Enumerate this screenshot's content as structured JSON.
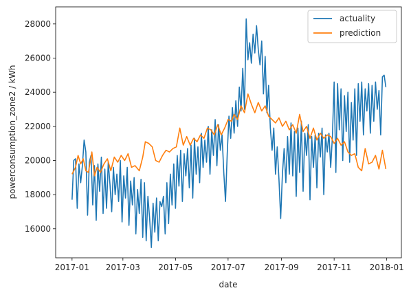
{
  "chart_data": {
    "type": "line",
    "title": "",
    "xlabel": "date",
    "ylabel": "powerconsumption_zone2 / kWh",
    "xlim": [
      "2016-12-13",
      "2018-01-18"
    ],
    "ylim": [
      14300,
      29000
    ],
    "x_ticks": [
      "2017-01",
      "2017-03",
      "2017-05",
      "2017-07",
      "2017-09",
      "2017-11",
      "2018-01"
    ],
    "y_ticks": [
      16000,
      18000,
      20000,
      22000,
      24000,
      26000,
      28000
    ],
    "grid": false,
    "legend_position": "top-right",
    "series": [
      {
        "name": "actuality",
        "color": "#1f77b4",
        "points": [
          [
            "2017-01-01",
            17700
          ],
          [
            "2017-01-03",
            20000
          ],
          [
            "2017-01-05",
            20100
          ],
          [
            "2017-01-07",
            17200
          ],
          [
            "2017-01-09",
            19800
          ],
          [
            "2017-01-11",
            18700
          ],
          [
            "2017-01-13",
            19700
          ],
          [
            "2017-01-15",
            21200
          ],
          [
            "2017-01-17",
            20500
          ],
          [
            "2017-01-19",
            16800
          ],
          [
            "2017-01-21",
            19900
          ],
          [
            "2017-01-23",
            20300
          ],
          [
            "2017-01-25",
            17400
          ],
          [
            "2017-01-27",
            19700
          ],
          [
            "2017-01-29",
            16500
          ],
          [
            "2017-01-31",
            19800
          ],
          [
            "2017-02-02",
            18200
          ],
          [
            "2017-02-04",
            20200
          ],
          [
            "2017-02-06",
            16900
          ],
          [
            "2017-02-08",
            19500
          ],
          [
            "2017-02-10",
            17200
          ],
          [
            "2017-02-12",
            19900
          ],
          [
            "2017-02-14",
            18600
          ],
          [
            "2017-02-16",
            17000
          ],
          [
            "2017-02-18",
            19600
          ],
          [
            "2017-02-20",
            18000
          ],
          [
            "2017-02-22",
            19200
          ],
          [
            "2017-02-24",
            17600
          ],
          [
            "2017-02-26",
            20000
          ],
          [
            "2017-02-28",
            16400
          ],
          [
            "2017-03-02",
            19100
          ],
          [
            "2017-03-04",
            17800
          ],
          [
            "2017-03-06",
            19600
          ],
          [
            "2017-03-08",
            16200
          ],
          [
            "2017-03-10",
            18800
          ],
          [
            "2017-03-12",
            17400
          ],
          [
            "2017-03-14",
            19000
          ],
          [
            "2017-03-16",
            15700
          ],
          [
            "2017-03-18",
            18300
          ],
          [
            "2017-03-20",
            16900
          ],
          [
            "2017-03-22",
            18900
          ],
          [
            "2017-03-24",
            15500
          ],
          [
            "2017-03-26",
            18700
          ],
          [
            "2017-03-28",
            15300
          ],
          [
            "2017-03-30",
            17900
          ],
          [
            "2017-04-01",
            16600
          ],
          [
            "2017-04-03",
            14900
          ],
          [
            "2017-04-05",
            17500
          ],
          [
            "2017-04-07",
            15800
          ],
          [
            "2017-04-09",
            17800
          ],
          [
            "2017-04-11",
            15300
          ],
          [
            "2017-04-13",
            17600
          ],
          [
            "2017-04-15",
            17300
          ],
          [
            "2017-04-17",
            17900
          ],
          [
            "2017-04-19",
            15700
          ],
          [
            "2017-04-21",
            18700
          ],
          [
            "2017-04-23",
            16300
          ],
          [
            "2017-04-25",
            19200
          ],
          [
            "2017-04-27",
            17400
          ],
          [
            "2017-04-29",
            19800
          ],
          [
            "2017-05-01",
            17200
          ],
          [
            "2017-05-03",
            20300
          ],
          [
            "2017-05-05",
            18500
          ],
          [
            "2017-05-07",
            20600
          ],
          [
            "2017-05-09",
            17600
          ],
          [
            "2017-05-11",
            20400
          ],
          [
            "2017-05-13",
            19100
          ],
          [
            "2017-05-15",
            20700
          ],
          [
            "2017-05-17",
            18400
          ],
          [
            "2017-05-19",
            20900
          ],
          [
            "2017-05-21",
            17800
          ],
          [
            "2017-05-23",
            21300
          ],
          [
            "2017-05-25",
            19200
          ],
          [
            "2017-05-27",
            20800
          ],
          [
            "2017-05-29",
            18700
          ],
          [
            "2017-05-31",
            21600
          ],
          [
            "2017-06-02",
            19600
          ],
          [
            "2017-06-04",
            21200
          ],
          [
            "2017-06-06",
            19900
          ],
          [
            "2017-06-08",
            22000
          ],
          [
            "2017-06-10",
            19200
          ],
          [
            "2017-06-12",
            21800
          ],
          [
            "2017-06-14",
            20300
          ],
          [
            "2017-06-16",
            22400
          ],
          [
            "2017-06-18",
            19700
          ],
          [
            "2017-06-20",
            22100
          ],
          [
            "2017-06-22",
            20600
          ],
          [
            "2017-06-24",
            21500
          ],
          [
            "2017-06-26",
            19300
          ],
          [
            "2017-06-28",
            17600
          ],
          [
            "2017-06-30",
            20400
          ],
          [
            "2017-07-02",
            22600
          ],
          [
            "2017-07-04",
            21300
          ],
          [
            "2017-07-06",
            23100
          ],
          [
            "2017-07-08",
            21600
          ],
          [
            "2017-07-10",
            23500
          ],
          [
            "2017-07-12",
            22000
          ],
          [
            "2017-07-14",
            24300
          ],
          [
            "2017-07-16",
            22900
          ],
          [
            "2017-07-18",
            25400
          ],
          [
            "2017-07-20",
            23000
          ],
          [
            "2017-07-22",
            28300
          ],
          [
            "2017-07-24",
            25900
          ],
          [
            "2017-07-26",
            26900
          ],
          [
            "2017-07-28",
            25700
          ],
          [
            "2017-07-30",
            27400
          ],
          [
            "2017-08-01",
            26300
          ],
          [
            "2017-08-03",
            27900
          ],
          [
            "2017-08-05",
            26500
          ],
          [
            "2017-08-07",
            25600
          ],
          [
            "2017-08-09",
            27000
          ],
          [
            "2017-08-11",
            23900
          ],
          [
            "2017-08-13",
            26100
          ],
          [
            "2017-08-15",
            22800
          ],
          [
            "2017-08-17",
            24400
          ],
          [
            "2017-08-19",
            21900
          ],
          [
            "2017-08-21",
            20600
          ],
          [
            "2017-08-23",
            21900
          ],
          [
            "2017-08-25",
            19200
          ],
          [
            "2017-08-27",
            20800
          ],
          [
            "2017-08-29",
            18900
          ],
          [
            "2017-08-31",
            16600
          ],
          [
            "2017-09-02",
            19200
          ],
          [
            "2017-09-04",
            20700
          ],
          [
            "2017-09-06",
            18700
          ],
          [
            "2017-09-08",
            21400
          ],
          [
            "2017-09-10",
            19200
          ],
          [
            "2017-09-12",
            22200
          ],
          [
            "2017-09-14",
            19100
          ],
          [
            "2017-09-16",
            21700
          ],
          [
            "2017-09-18",
            17900
          ],
          [
            "2017-09-20",
            21900
          ],
          [
            "2017-09-22",
            19300
          ],
          [
            "2017-09-24",
            22300
          ],
          [
            "2017-09-26",
            18200
          ],
          [
            "2017-09-28",
            21600
          ],
          [
            "2017-09-30",
            20300
          ],
          [
            "2017-10-02",
            22100
          ],
          [
            "2017-10-04",
            17700
          ],
          [
            "2017-10-06",
            21400
          ],
          [
            "2017-10-08",
            19600
          ],
          [
            "2017-10-10",
            21500
          ],
          [
            "2017-10-12",
            18400
          ],
          [
            "2017-10-14",
            21600
          ],
          [
            "2017-10-16",
            20200
          ],
          [
            "2017-10-18",
            21900
          ],
          [
            "2017-10-20",
            18000
          ],
          [
            "2017-10-22",
            21500
          ],
          [
            "2017-10-24",
            20500
          ],
          [
            "2017-10-26",
            21600
          ],
          [
            "2017-10-28",
            19600
          ],
          [
            "2017-10-30",
            21400
          ],
          [
            "2017-11-01",
            24600
          ],
          [
            "2017-11-03",
            19300
          ],
          [
            "2017-11-05",
            24500
          ],
          [
            "2017-11-07",
            21800
          ],
          [
            "2017-11-09",
            24200
          ],
          [
            "2017-11-11",
            20000
          ],
          [
            "2017-11-13",
            23800
          ],
          [
            "2017-11-15",
            21700
          ],
          [
            "2017-11-17",
            24000
          ],
          [
            "2017-11-19",
            19900
          ],
          [
            "2017-11-21",
            23400
          ],
          [
            "2017-11-23",
            21200
          ],
          [
            "2017-11-25",
            24200
          ],
          [
            "2017-11-27",
            20300
          ],
          [
            "2017-11-29",
            24500
          ],
          [
            "2017-12-01",
            22300
          ],
          [
            "2017-12-03",
            24600
          ],
          [
            "2017-12-05",
            21500
          ],
          [
            "2017-12-07",
            24200
          ],
          [
            "2017-12-09",
            22900
          ],
          [
            "2017-12-11",
            24500
          ],
          [
            "2017-12-13",
            21600
          ],
          [
            "2017-12-15",
            24400
          ],
          [
            "2017-12-17",
            22300
          ],
          [
            "2017-12-19",
            24600
          ],
          [
            "2017-12-21",
            23000
          ],
          [
            "2017-12-23",
            24100
          ],
          [
            "2017-12-25",
            21500
          ],
          [
            "2017-12-27",
            24900
          ],
          [
            "2017-12-29",
            25000
          ],
          [
            "2017-12-31",
            24300
          ]
        ]
      },
      {
        "name": "prediction",
        "color": "#ff7f0e",
        "points": [
          [
            "2017-01-01",
            19200
          ],
          [
            "2017-01-05",
            19600
          ],
          [
            "2017-01-08",
            20300
          ],
          [
            "2017-01-11",
            19800
          ],
          [
            "2017-01-14",
            20100
          ],
          [
            "2017-01-17",
            19400
          ],
          [
            "2017-01-20",
            19300
          ],
          [
            "2017-01-24",
            20500
          ],
          [
            "2017-01-27",
            19100
          ],
          [
            "2017-01-30",
            19600
          ],
          [
            "2017-02-03",
            19300
          ],
          [
            "2017-02-07",
            19800
          ],
          [
            "2017-02-11",
            20100
          ],
          [
            "2017-02-15",
            19400
          ],
          [
            "2017-02-19",
            20200
          ],
          [
            "2017-02-23",
            19900
          ],
          [
            "2017-02-27",
            20300
          ],
          [
            "2017-03-03",
            20000
          ],
          [
            "2017-03-07",
            20400
          ],
          [
            "2017-03-11",
            19600
          ],
          [
            "2017-03-15",
            19700
          ],
          [
            "2017-03-20",
            19400
          ],
          [
            "2017-03-24",
            20200
          ],
          [
            "2017-03-27",
            21100
          ],
          [
            "2017-03-31",
            21000
          ],
          [
            "2017-04-04",
            20800
          ],
          [
            "2017-04-08",
            20000
          ],
          [
            "2017-04-12",
            19900
          ],
          [
            "2017-04-16",
            20300
          ],
          [
            "2017-04-20",
            20600
          ],
          [
            "2017-04-24",
            20500
          ],
          [
            "2017-04-28",
            20700
          ],
          [
            "2017-05-02",
            20800
          ],
          [
            "2017-05-06",
            21900
          ],
          [
            "2017-05-10",
            20900
          ],
          [
            "2017-05-14",
            21400
          ],
          [
            "2017-05-18",
            20900
          ],
          [
            "2017-05-22",
            21300
          ],
          [
            "2017-05-26",
            21100
          ],
          [
            "2017-05-30",
            21500
          ],
          [
            "2017-06-03",
            21300
          ],
          [
            "2017-06-07",
            21900
          ],
          [
            "2017-06-11",
            21800
          ],
          [
            "2017-06-15",
            21500
          ],
          [
            "2017-06-19",
            22100
          ],
          [
            "2017-06-23",
            21500
          ],
          [
            "2017-06-27",
            21900
          ],
          [
            "2017-07-01",
            22400
          ],
          [
            "2017-07-05",
            22300
          ],
          [
            "2017-07-08",
            22700
          ],
          [
            "2017-07-12",
            22400
          ],
          [
            "2017-07-16",
            23200
          ],
          [
            "2017-07-20",
            22800
          ],
          [
            "2017-07-24",
            23900
          ],
          [
            "2017-07-28",
            23300
          ],
          [
            "2017-08-01",
            22800
          ],
          [
            "2017-08-05",
            23400
          ],
          [
            "2017-08-09",
            22900
          ],
          [
            "2017-08-13",
            23200
          ],
          [
            "2017-08-17",
            22600
          ],
          [
            "2017-08-21",
            22400
          ],
          [
            "2017-08-25",
            22200
          ],
          [
            "2017-08-29",
            22500
          ],
          [
            "2017-09-02",
            22000
          ],
          [
            "2017-09-06",
            22300
          ],
          [
            "2017-09-10",
            21800
          ],
          [
            "2017-09-14",
            22100
          ],
          [
            "2017-09-18",
            21600
          ],
          [
            "2017-09-22",
            22700
          ],
          [
            "2017-09-26",
            21700
          ],
          [
            "2017-09-30",
            22000
          ],
          [
            "2017-10-04",
            21300
          ],
          [
            "2017-10-08",
            21900
          ],
          [
            "2017-10-12",
            21200
          ],
          [
            "2017-10-16",
            21600
          ],
          [
            "2017-10-20",
            21300
          ],
          [
            "2017-10-24",
            21500
          ],
          [
            "2017-10-28",
            21400
          ],
          [
            "2017-11-01",
            21000
          ],
          [
            "2017-11-05",
            21300
          ],
          [
            "2017-11-09",
            20900
          ],
          [
            "2017-11-13",
            21100
          ],
          [
            "2017-11-17",
            20500
          ],
          [
            "2017-11-21",
            20300
          ],
          [
            "2017-11-25",
            20400
          ],
          [
            "2017-11-29",
            19600
          ],
          [
            "2017-12-03",
            19400
          ],
          [
            "2017-12-07",
            20700
          ],
          [
            "2017-12-11",
            19800
          ],
          [
            "2017-12-15",
            19900
          ],
          [
            "2017-12-19",
            20300
          ],
          [
            "2017-12-23",
            19500
          ],
          [
            "2017-12-27",
            20600
          ],
          [
            "2017-12-31",
            19500
          ]
        ]
      }
    ]
  }
}
